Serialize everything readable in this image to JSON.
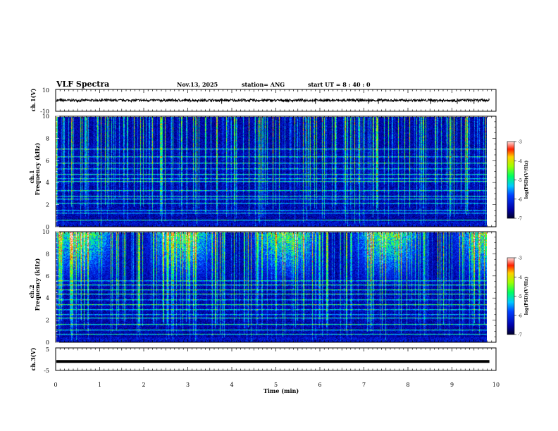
{
  "header": {
    "title": "VLF Spectra",
    "date": "Nov.13, 2025",
    "station": "station= ANG",
    "start": "start  UT =   8  : 40 : 0"
  },
  "colors": {
    "background": "#ffffff",
    "axis": "#000000",
    "spectrogram_floor": "#00003a"
  },
  "chart_data": [
    {
      "type": "line",
      "name": "ch1-waveform",
      "ylabel": "ch.1(V)",
      "ylim": [
        -10,
        10
      ],
      "tick_labels": [
        "10",
        "-10"
      ],
      "xlim": [
        0,
        10
      ],
      "baseline": 0,
      "noise_amplitude": 1.2,
      "x_end": 9.85
    },
    {
      "type": "heatmap",
      "name": "ch1-spectrogram",
      "ylabel_channel": "ch.1",
      "ylabel": "Frequency (kHz)",
      "ylim": [
        0,
        10
      ],
      "yticks": [
        "0",
        "2",
        "4",
        "6",
        "8",
        "10"
      ],
      "xlim": [
        0,
        10
      ],
      "x_end": 9.85,
      "hum_lines_khz": [
        0.6,
        1.2,
        1.5,
        2.1,
        2.5,
        2.8,
        3.3,
        4.1,
        4.4,
        4.8,
        5.3,
        5.8,
        6.4,
        7.1
      ],
      "colorbar": {
        "label": "log(PSD)(V²/Hz)",
        "ticks": [
          "-3",
          "-4",
          "-5",
          "-6",
          "-7"
        ],
        "range": [
          -7,
          -3
        ]
      }
    },
    {
      "type": "heatmap",
      "name": "ch2-spectrogram",
      "ylabel_channel": "ch.2",
      "ylabel": "Frequency (kHz)",
      "ylim": [
        0,
        10
      ],
      "yticks": [
        "0",
        "2",
        "4",
        "6",
        "8",
        "10"
      ],
      "xlim": [
        0,
        10
      ],
      "x_end": 9.85,
      "hum_lines_khz": [
        0.7,
        1.1,
        1.6,
        2.2,
        2.5,
        3.0,
        3.4,
        3.9,
        4.4,
        4.8,
        5.2,
        5.6
      ],
      "colorbar": {
        "label": "log(PSD)(V²/Hz)",
        "ticks": [
          "-3",
          "-4",
          "-5",
          "-6",
          "-7"
        ],
        "range": [
          -7,
          -3
        ]
      }
    },
    {
      "type": "line",
      "name": "ch3-waveform",
      "ylabel": "ch.3(V)",
      "ylim": [
        -5,
        5
      ],
      "tick_labels": [
        "5",
        "-5"
      ],
      "xlim": [
        0,
        10
      ],
      "baseline": -1,
      "noise_amplitude": 0.1,
      "x_end": 9.85
    }
  ],
  "x_axis": {
    "label": "Time  (min)",
    "ticks": [
      "0",
      "1",
      "2",
      "3",
      "4",
      "5",
      "6",
      "7",
      "8",
      "9",
      "10"
    ]
  }
}
